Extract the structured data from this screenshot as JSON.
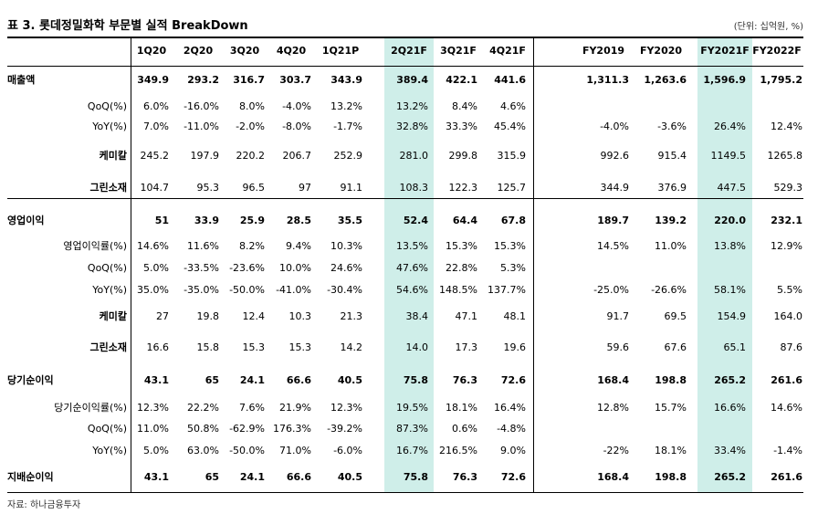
{
  "title": "표 3. 롯데정밀화학 부문별 실적 BreakDown",
  "unit": "(단위: 십억원, %)",
  "source": "자료: 하나금융투자",
  "columns": [
    "1Q20",
    "2Q20",
    "3Q20",
    "4Q20",
    "1Q21P",
    "2Q21F",
    "3Q21F",
    "4Q21F",
    "FY2019",
    "FY2020",
    "FY2021F",
    "FY2022F"
  ],
  "highlight_color": "#cfeee9",
  "rows": [
    {
      "label": "매출액",
      "bold": true,
      "align": "left",
      "values": [
        "349.9",
        "293.2",
        "316.7",
        "303.7",
        "343.9",
        "389.4",
        "422.1",
        "441.6",
        "1,311.3",
        "1,263.6",
        "1,596.9",
        "1,795.2"
      ]
    },
    {
      "label": "QoQ(%)",
      "bold": false,
      "align": "right",
      "values": [
        "6.0%",
        "-16.0%",
        "8.0%",
        "-4.0%",
        "13.2%",
        "13.2%",
        "8.4%",
        "4.6%",
        "",
        "",
        "",
        ""
      ]
    },
    {
      "label": "YoY(%)",
      "bold": false,
      "align": "right",
      "values": [
        "7.0%",
        "-11.0%",
        "-2.0%",
        "-8.0%",
        "-1.7%",
        "32.8%",
        "33.3%",
        "45.4%",
        "-4.0%",
        "-3.6%",
        "26.4%",
        "12.4%"
      ]
    },
    {
      "label": "케미칼",
      "bold": true,
      "align": "right",
      "values": [
        "245.2",
        "197.9",
        "220.2",
        "206.7",
        "252.9",
        "281.0",
        "299.8",
        "315.9",
        "992.6",
        "915.4",
        "1149.5",
        "1265.8"
      ]
    },
    {
      "label": "그린소재",
      "bold": true,
      "align": "right",
      "values": [
        "104.7",
        "95.3",
        "96.5",
        "97",
        "91.1",
        "108.3",
        "122.3",
        "125.7",
        "344.9",
        "376.9",
        "447.5",
        "529.3"
      ]
    },
    {
      "label": "영업이익",
      "bold": true,
      "align": "left",
      "values": [
        "51",
        "33.9",
        "25.9",
        "28.5",
        "35.5",
        "52.4",
        "64.4",
        "67.8",
        "189.7",
        "139.2",
        "220.0",
        "232.1"
      ]
    },
    {
      "label": "영업이익률(%)",
      "bold": false,
      "align": "right",
      "values": [
        "14.6%",
        "11.6%",
        "8.2%",
        "9.4%",
        "10.3%",
        "13.5%",
        "15.3%",
        "15.3%",
        "14.5%",
        "11.0%",
        "13.8%",
        "12.9%"
      ]
    },
    {
      "label": "QoQ(%)",
      "bold": false,
      "align": "right",
      "values": [
        "5.0%",
        "-33.5%",
        "-23.6%",
        "10.0%",
        "24.6%",
        "47.6%",
        "22.8%",
        "5.3%",
        "",
        "",
        "",
        ""
      ]
    },
    {
      "label": "YoY(%)",
      "bold": false,
      "align": "right",
      "values": [
        "35.0%",
        "-35.0%",
        "-50.0%",
        "-41.0%",
        "-30.4%",
        "54.6%",
        "148.5%",
        "137.7%",
        "-25.0%",
        "-26.6%",
        "58.1%",
        "5.5%"
      ]
    },
    {
      "label": "케미칼",
      "bold": true,
      "align": "right",
      "values": [
        "27",
        "19.8",
        "12.4",
        "10.3",
        "21.3",
        "38.4",
        "47.1",
        "48.1",
        "91.7",
        "69.5",
        "154.9",
        "164.0"
      ]
    },
    {
      "label": "그린소재",
      "bold": true,
      "align": "right",
      "values": [
        "16.6",
        "15.8",
        "15.3",
        "15.3",
        "14.2",
        "14.0",
        "17.3",
        "19.6",
        "59.6",
        "67.6",
        "65.1",
        "87.6"
      ]
    },
    {
      "label": "당기순이익",
      "bold": true,
      "align": "left",
      "values": [
        "43.1",
        "65",
        "24.1",
        "66.6",
        "40.5",
        "75.8",
        "76.3",
        "72.6",
        "168.4",
        "198.8",
        "265.2",
        "261.6"
      ]
    },
    {
      "label": "당기순이익률(%)",
      "bold": false,
      "align": "right",
      "values": [
        "12.3%",
        "22.2%",
        "7.6%",
        "21.9%",
        "12.3%",
        "19.5%",
        "18.1%",
        "16.4%",
        "12.8%",
        "15.7%",
        "16.6%",
        "14.6%"
      ]
    },
    {
      "label": "QoQ(%)",
      "bold": false,
      "align": "right",
      "values": [
        "11.0%",
        "50.8%",
        "-62.9%",
        "176.3%",
        "-39.2%",
        "87.3%",
        "0.6%",
        "-4.8%",
        "",
        "",
        "",
        ""
      ]
    },
    {
      "label": "YoY(%)",
      "bold": false,
      "align": "right",
      "values": [
        "5.0%",
        "63.0%",
        "-50.0%",
        "71.0%",
        "-6.0%",
        "16.7%",
        "216.5%",
        "9.0%",
        "-22%",
        "18.1%",
        "33.4%",
        "-1.4%"
      ]
    },
    {
      "label": "지배순이익",
      "bold": true,
      "align": "left",
      "values": [
        "43.1",
        "65",
        "24.1",
        "66.6",
        "40.5",
        "75.8",
        "76.3",
        "72.6",
        "168.4",
        "198.8",
        "265.2",
        "261.6"
      ]
    }
  ]
}
